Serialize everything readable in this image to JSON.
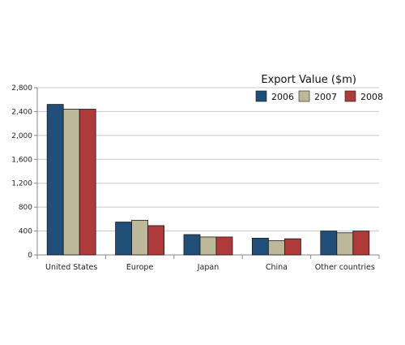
{
  "chart_data": {
    "type": "bar",
    "title": "",
    "xlabel": "",
    "ylabel": "",
    "legend_title": "Export Value ($m)",
    "legend_position": "top-right",
    "grid": true,
    "ylim": [
      0,
      2800
    ],
    "yticks": [
      "0",
      "400",
      "800",
      "1,200",
      "1,600",
      "2,000",
      "2,400",
      "2,800"
    ],
    "ytick_values": [
      0,
      400,
      800,
      1200,
      1600,
      2000,
      2400,
      2800
    ],
    "categories": [
      "United States",
      "Europe",
      "Japan",
      "China",
      "Other countries"
    ],
    "series": [
      {
        "name": "2006",
        "color": "#1f4e79",
        "values": [
          2520,
          550,
          340,
          280,
          400
        ]
      },
      {
        "name": "2007",
        "color": "#bdb89a",
        "values": [
          2440,
          580,
          300,
          240,
          370
        ]
      },
      {
        "name": "2008",
        "color": "#b03a3a",
        "values": [
          2440,
          490,
          300,
          270,
          400
        ]
      }
    ]
  }
}
